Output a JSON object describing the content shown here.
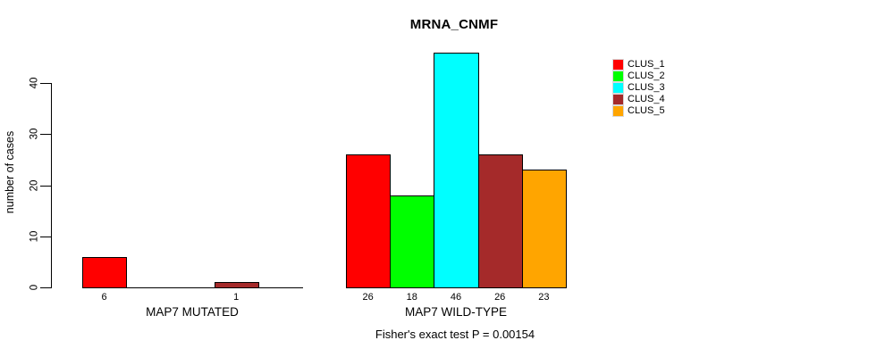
{
  "chart_data": {
    "type": "bar",
    "title": "MRNA_CNMF",
    "ylabel": "number of cases",
    "xlabel": "",
    "ylim": [
      0,
      46
    ],
    "yticks": [
      0,
      10,
      20,
      30,
      40
    ],
    "grid": "off",
    "categories": [
      "CLUS_1",
      "CLUS_2",
      "CLUS_3",
      "CLUS_4",
      "CLUS_5"
    ],
    "colors": [
      "#FF0000",
      "#00FF00",
      "#00FFFF",
      "#A52A2A",
      "#FFA500"
    ],
    "groups": [
      {
        "label": "MAP7 MUTATED",
        "values": [
          6,
          0,
          0,
          1,
          0
        ],
        "bar_labels": [
          "6",
          "",
          "",
          "1",
          ""
        ]
      },
      {
        "label": "MAP7 WILD-TYPE",
        "values": [
          26,
          18,
          46,
          26,
          23
        ],
        "bar_labels": [
          "26",
          "18",
          "46",
          "26",
          "23"
        ]
      }
    ],
    "annotation": "Fisher's exact test P = 0.00154",
    "legend": {
      "position": "top-right",
      "entries": [
        {
          "label": "CLUS_1",
          "color": "#FF0000"
        },
        {
          "label": "CLUS_2",
          "color": "#00FF00"
        },
        {
          "label": "CLUS_3",
          "color": "#00FFFF"
        },
        {
          "label": "CLUS_4",
          "color": "#A52A2A"
        },
        {
          "label": "CLUS_5",
          "color": "#FFA500"
        }
      ]
    }
  }
}
